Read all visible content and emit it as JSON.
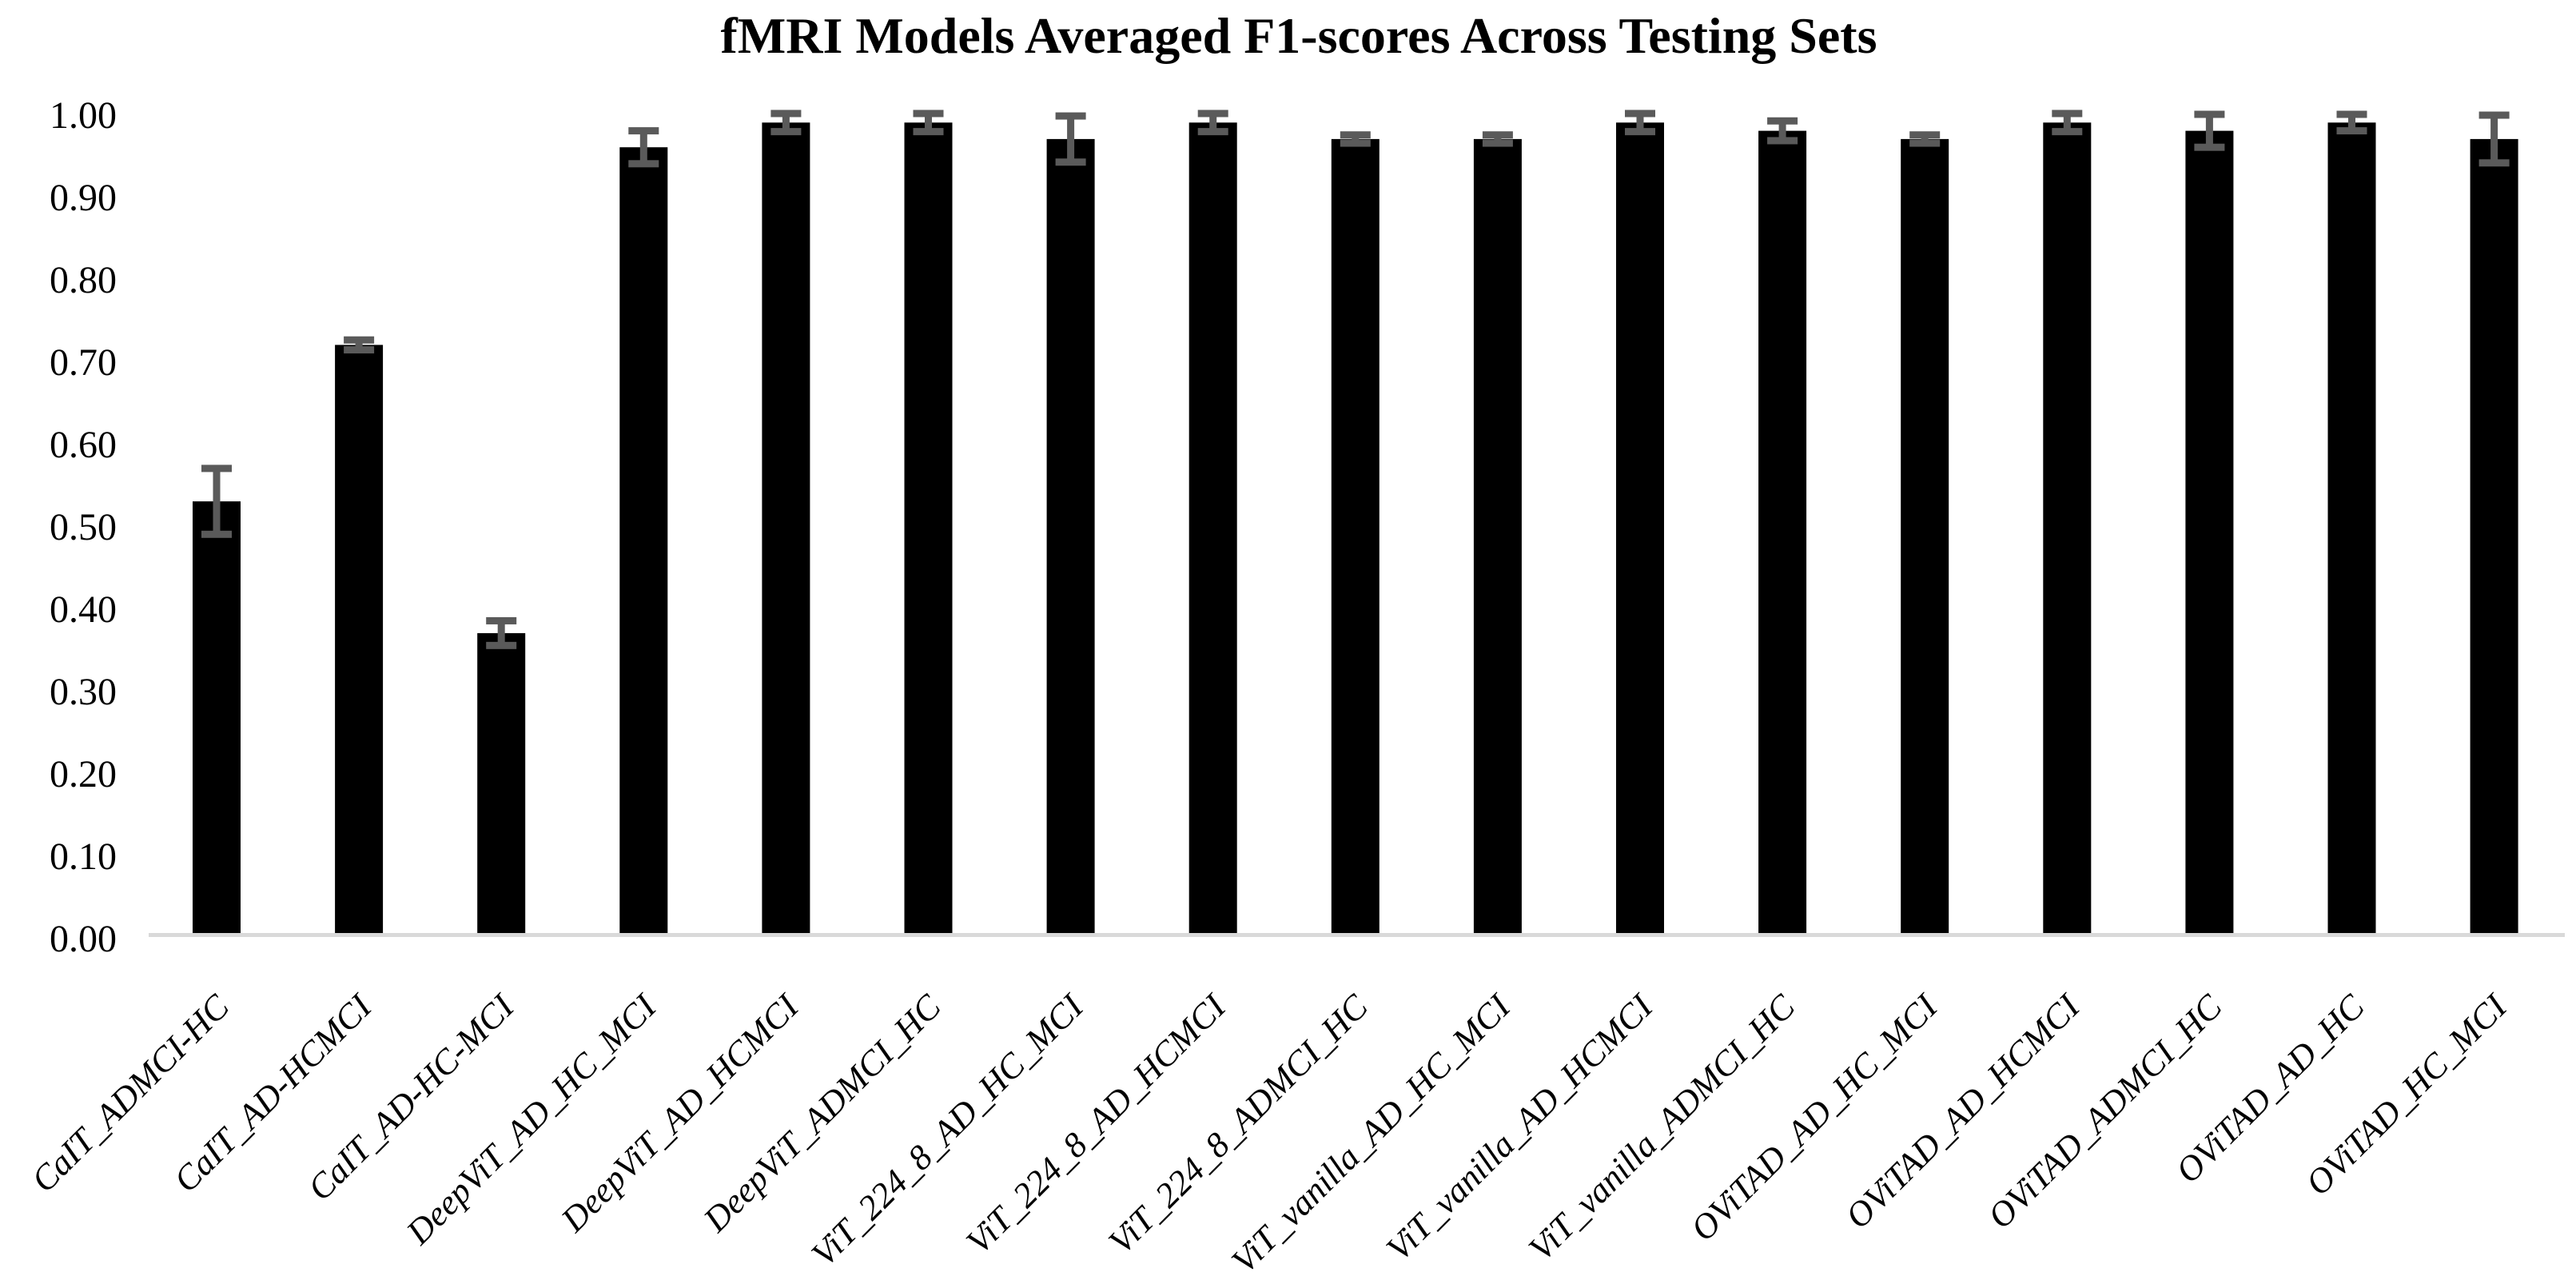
{
  "chart_data": {
    "type": "bar",
    "title": "fMRI Models Averaged F1-scores Across Testing Sets",
    "xlabel": "",
    "ylabel": "",
    "ylim": [
      0.0,
      1.0
    ],
    "ytick_step": 0.1,
    "ytick_labels": [
      "1.00",
      "0.90",
      "0.80",
      "0.70",
      "0.60",
      "0.50",
      "0.40",
      "0.30",
      "0.20",
      "0.10",
      "0.00"
    ],
    "grid": false,
    "legend": false,
    "bar_color": "#000000",
    "error_bar_color": "#5a5a5a",
    "axis_line_color": "#d9d9d9",
    "categories": [
      "CaIT_ADMCI-HC",
      "CaIT_AD-HCMCI",
      "CaIT_AD-HC-MCI",
      "DeepViT_AD_HC_MCI",
      "DeepViT_AD_HCMCI",
      "DeepViT_ADMCI_HC",
      "ViT_224_8_AD_HC_MCI",
      "ViT_224_8_AD_HCMCI",
      "ViT_224_8_ADMCI_HC",
      "ViT_vanilla_AD_HC_MCI",
      "ViT_vanilla_AD_HCMCI",
      "ViT_vanilla_ADMCI_HC",
      "OViTAD_AD_HC_MCI",
      "OViTAD_AD_HCMCI",
      "OViTAD_ADMCI_HC",
      "OViTAD_AD_HC",
      "OViTAD_HC_MCI"
    ],
    "series": [
      {
        "name": "Averaged F1-score",
        "values": [
          0.53,
          0.72,
          0.37,
          0.96,
          0.99,
          0.99,
          0.97,
          0.99,
          0.97,
          0.97,
          0.99,
          0.98,
          0.97,
          0.99,
          0.98,
          0.99,
          0.97
        ],
        "errors": [
          0.04,
          0.006,
          0.015,
          0.02,
          0.011,
          0.011,
          0.028,
          0.011,
          0.005,
          0.005,
          0.011,
          0.012,
          0.005,
          0.011,
          0.02,
          0.01,
          0.029
        ]
      }
    ]
  }
}
